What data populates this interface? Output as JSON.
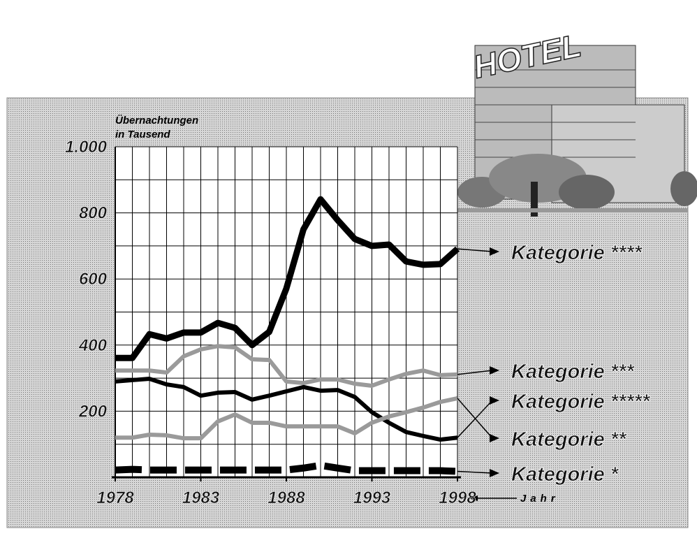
{
  "chart_data": {
    "type": "line",
    "y_label": [
      "Übernachtungen",
      "in Tausend"
    ],
    "x_label": "Jahr",
    "illustration_text": "HOTEL",
    "x": [
      1978,
      1979,
      1980,
      1981,
      1982,
      1983,
      1984,
      1985,
      1986,
      1987,
      1988,
      1989,
      1990,
      1991,
      1992,
      1993,
      1994,
      1995,
      1996,
      1997,
      1998
    ],
    "xlim": [
      1978,
      1998
    ],
    "xticks": [
      1978,
      1983,
      1988,
      1993,
      1998
    ],
    "ylim": [
      0,
      1000
    ],
    "yticks": [
      200,
      400,
      600,
      800,
      {
        "value": 1000,
        "label": "1.000"
      }
    ],
    "grid": true,
    "series": [
      {
        "name": "Kategorie ****",
        "color": "#000000",
        "values": [
          361,
          361,
          433,
          420,
          438,
          438,
          467,
          452,
          400,
          440,
          571,
          750,
          841,
          778,
          721,
          700,
          704,
          653,
          643,
          645,
          691
        ]
      },
      {
        "name": "Kategorie ***",
        "color": "#9a9a9a",
        "values": [
          323,
          323,
          323,
          317,
          366,
          387,
          397,
          393,
          357,
          355,
          290,
          285,
          296,
          296,
          283,
          277,
          296,
          313,
          323,
          309,
          311
        ]
      },
      {
        "name": "Kategorie *****",
        "color": "#000000",
        "values": [
          290,
          294,
          298,
          281,
          273,
          247,
          256,
          258,
          235,
          247,
          260,
          273,
          262,
          264,
          243,
          197,
          165,
          137,
          125,
          114,
          120
        ]
      },
      {
        "name": "Kategorie **",
        "color": "#9a9a9a",
        "values": [
          120,
          120,
          129,
          127,
          118,
          118,
          169,
          190,
          165,
          165,
          154,
          154,
          154,
          154,
          133,
          165,
          184,
          197,
          211,
          228,
          239
        ]
      },
      {
        "name": "Kategorie *",
        "color": "#000000",
        "values": [
          22,
          24,
          22,
          22,
          22,
          22,
          22,
          22,
          22,
          22,
          22,
          28,
          36,
          28,
          20,
          20,
          20,
          20,
          20,
          20,
          18
        ]
      }
    ]
  }
}
